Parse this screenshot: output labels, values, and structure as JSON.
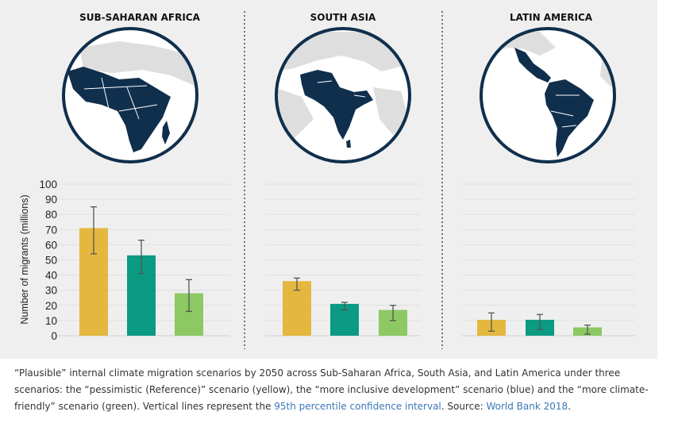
{
  "colors": {
    "pessimistic": "#e4b83e",
    "inclusive": "#0b9a83",
    "climate_friendly": "#8cc963",
    "map_fill": "#ffffff",
    "map_highlight": "#102f4d",
    "map_other": "#dedede",
    "error_bar": "#555555",
    "divider": "#5d7a95",
    "link": "#3a78b5"
  },
  "icons": {
    "map_africa": "globe-africa-icon",
    "map_south_asia": "globe-south-asia-icon",
    "map_latin_america": "globe-latin-america-icon"
  },
  "chart_data": [
    {
      "type": "bar",
      "title": "SUB-SAHARAN AFRICA",
      "ylabel": "Number of migrants (millions)",
      "ylim": [
        0,
        100
      ],
      "yticks": [
        "0",
        "10",
        "20",
        "30",
        "40",
        "50",
        "60",
        "70",
        "80",
        "90",
        "100"
      ],
      "grid": true,
      "series": [
        {
          "scenario": "pessimistic",
          "value": 71,
          "ci": [
            54,
            85
          ]
        },
        {
          "scenario": "inclusive",
          "value": 53,
          "ci": [
            41,
            63
          ]
        },
        {
          "scenario": "climate_friendly",
          "value": 28,
          "ci": [
            16,
            37
          ]
        }
      ]
    },
    {
      "type": "bar",
      "title": "SOUTH ASIA",
      "ylim": [
        0,
        100
      ],
      "grid": true,
      "series": [
        {
          "scenario": "pessimistic",
          "value": 36,
          "ci": [
            30,
            38
          ]
        },
        {
          "scenario": "inclusive",
          "value": 21,
          "ci": [
            17,
            22
          ]
        },
        {
          "scenario": "climate_friendly",
          "value": 17,
          "ci": [
            10,
            20
          ]
        }
      ]
    },
    {
      "type": "bar",
      "title": "LATIN AMERICA",
      "ylim": [
        0,
        100
      ],
      "grid": true,
      "series": [
        {
          "scenario": "pessimistic",
          "value": 10.5,
          "ci": [
            3,
            15
          ]
        },
        {
          "scenario": "inclusive",
          "value": 10.5,
          "ci": [
            4,
            14
          ]
        },
        {
          "scenario": "climate_friendly",
          "value": 5.5,
          "ci": [
            1,
            7
          ]
        }
      ]
    }
  ],
  "caption": {
    "part1": "“Plausible” internal climate migration scenarios by 2050 across Sub-Saharan Africa, South Asia, and Latin America under three scenarios: the “pessimistic (Reference)” scenario (yellow), the “more inclusive development” scenario (blue) and the “more climate-friendly” scenario (green). Vertical lines represent the ",
    "link1": "95th percentile confidence interval",
    "part2": ". Source: ",
    "link2": "World Bank 2018",
    "part3": "."
  }
}
